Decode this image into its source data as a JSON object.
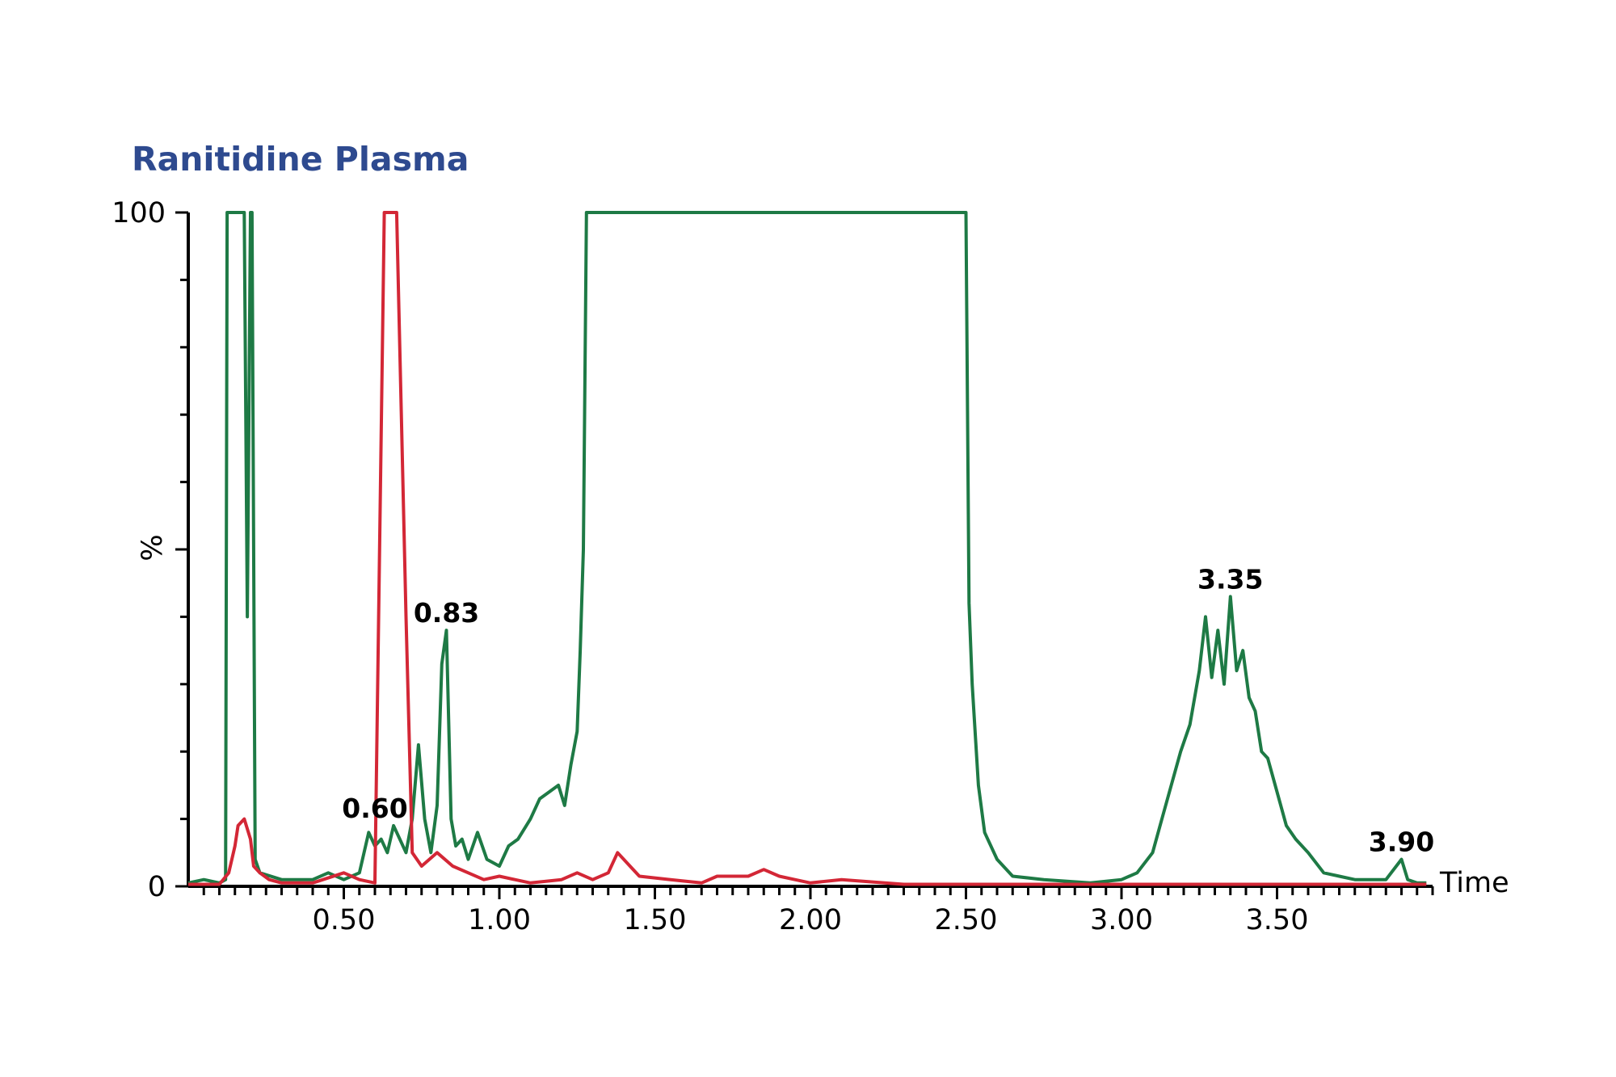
{
  "chart_data": {
    "type": "line",
    "title": "Ranitidine Plasma",
    "xlabel": "Time",
    "ylabel": "%",
    "xlim": [
      0,
      4.0
    ],
    "ylim": [
      0,
      100
    ],
    "x_ticks": [
      0.5,
      1.0,
      1.5,
      2.0,
      2.5,
      3.0,
      3.5
    ],
    "x_tick_labels": [
      "0.50",
      "1.00",
      "1.50",
      "2.00",
      "2.50",
      "3.00",
      "3.50"
    ],
    "x_minor_step": 0.05,
    "y_ticks": [
      0,
      100
    ],
    "y_tick_labels": [
      "0",
      "100"
    ],
    "y_minor_step": 10,
    "grid": false,
    "series": [
      {
        "color": "#1e7a45",
        "points": [
          [
            0.0,
            0.5
          ],
          [
            0.05,
            1
          ],
          [
            0.1,
            0.5
          ],
          [
            0.12,
            1
          ],
          [
            0.125,
            100
          ],
          [
            0.14,
            100
          ],
          [
            0.18,
            100
          ],
          [
            0.19,
            40
          ],
          [
            0.2,
            100
          ],
          [
            0.205,
            100
          ],
          [
            0.215,
            4
          ],
          [
            0.23,
            2
          ],
          [
            0.3,
            1
          ],
          [
            0.4,
            1
          ],
          [
            0.45,
            2
          ],
          [
            0.5,
            1
          ],
          [
            0.55,
            2
          ],
          [
            0.58,
            8
          ],
          [
            0.6,
            6
          ],
          [
            0.62,
            7
          ],
          [
            0.64,
            5
          ],
          [
            0.66,
            9
          ],
          [
            0.68,
            7
          ],
          [
            0.7,
            5
          ],
          [
            0.72,
            10
          ],
          [
            0.74,
            21
          ],
          [
            0.76,
            10
          ],
          [
            0.78,
            5
          ],
          [
            0.8,
            12
          ],
          [
            0.815,
            33
          ],
          [
            0.83,
            38
          ],
          [
            0.845,
            10
          ],
          [
            0.86,
            6
          ],
          [
            0.88,
            7
          ],
          [
            0.9,
            4
          ],
          [
            0.93,
            8
          ],
          [
            0.96,
            4
          ],
          [
            1.0,
            3
          ],
          [
            1.03,
            6
          ],
          [
            1.06,
            7
          ],
          [
            1.1,
            10
          ],
          [
            1.13,
            13
          ],
          [
            1.16,
            14
          ],
          [
            1.19,
            15
          ],
          [
            1.21,
            12
          ],
          [
            1.23,
            18
          ],
          [
            1.25,
            23
          ],
          [
            1.26,
            35
          ],
          [
            1.27,
            50
          ],
          [
            1.28,
            100
          ],
          [
            1.3,
            100
          ],
          [
            2.48,
            100
          ],
          [
            2.5,
            100
          ],
          [
            2.51,
            42
          ],
          [
            2.52,
            30
          ],
          [
            2.54,
            15
          ],
          [
            2.56,
            8
          ],
          [
            2.6,
            4
          ],
          [
            2.65,
            1.5
          ],
          [
            2.75,
            1
          ],
          [
            2.9,
            0.5
          ],
          [
            3.0,
            1
          ],
          [
            3.05,
            2
          ],
          [
            3.1,
            5
          ],
          [
            3.13,
            10
          ],
          [
            3.16,
            15
          ],
          [
            3.19,
            20
          ],
          [
            3.22,
            24
          ],
          [
            3.25,
            32
          ],
          [
            3.27,
            40
          ],
          [
            3.29,
            31
          ],
          [
            3.31,
            38
          ],
          [
            3.33,
            30
          ],
          [
            3.35,
            43
          ],
          [
            3.37,
            32
          ],
          [
            3.39,
            35
          ],
          [
            3.41,
            28
          ],
          [
            3.43,
            26
          ],
          [
            3.45,
            20
          ],
          [
            3.47,
            19
          ],
          [
            3.5,
            14
          ],
          [
            3.53,
            9
          ],
          [
            3.56,
            7
          ],
          [
            3.6,
            5
          ],
          [
            3.65,
            2
          ],
          [
            3.7,
            1.5
          ],
          [
            3.75,
            1
          ],
          [
            3.85,
            1
          ],
          [
            3.9,
            4
          ],
          [
            3.92,
            1
          ],
          [
            3.95,
            0.5
          ],
          [
            3.98,
            0.5
          ]
        ]
      },
      {
        "color": "#d32736",
        "points": [
          [
            0.0,
            0.3
          ],
          [
            0.1,
            0.3
          ],
          [
            0.13,
            2
          ],
          [
            0.15,
            6
          ],
          [
            0.16,
            9
          ],
          [
            0.18,
            10
          ],
          [
            0.2,
            7
          ],
          [
            0.21,
            3
          ],
          [
            0.23,
            2
          ],
          [
            0.26,
            1
          ],
          [
            0.3,
            0.5
          ],
          [
            0.4,
            0.5
          ],
          [
            0.5,
            2
          ],
          [
            0.55,
            1
          ],
          [
            0.6,
            0.5
          ],
          [
            0.63,
            100
          ],
          [
            0.67,
            100
          ],
          [
            0.7,
            40
          ],
          [
            0.72,
            5
          ],
          [
            0.75,
            3
          ],
          [
            0.8,
            5
          ],
          [
            0.85,
            3
          ],
          [
            0.9,
            2
          ],
          [
            0.95,
            1
          ],
          [
            1.0,
            1.5
          ],
          [
            1.05,
            1
          ],
          [
            1.1,
            0.5
          ],
          [
            1.2,
            1
          ],
          [
            1.25,
            2
          ],
          [
            1.3,
            1
          ],
          [
            1.35,
            2
          ],
          [
            1.38,
            5
          ],
          [
            1.42,
            3
          ],
          [
            1.45,
            1.5
          ],
          [
            1.55,
            1
          ],
          [
            1.65,
            0.5
          ],
          [
            1.7,
            1.5
          ],
          [
            1.8,
            1.5
          ],
          [
            1.85,
            2.5
          ],
          [
            1.9,
            1.5
          ],
          [
            1.95,
            1
          ],
          [
            2.0,
            0.5
          ],
          [
            2.1,
            1
          ],
          [
            2.3,
            0.3
          ],
          [
            2.5,
            0.3
          ],
          [
            3.0,
            0.3
          ],
          [
            3.5,
            0.3
          ],
          [
            3.7,
            0.3
          ],
          [
            3.98,
            0.3
          ]
        ]
      }
    ],
    "annotations": [
      {
        "text": "0.83",
        "x": 0.83,
        "y": 38
      },
      {
        "text": "0.60",
        "x": 0.6,
        "y": 9
      },
      {
        "text": "3.35",
        "x": 3.35,
        "y": 43
      },
      {
        "text": "3.90",
        "x": 3.9,
        "y": 4
      }
    ],
    "title_color": "#2e4a8f"
  }
}
